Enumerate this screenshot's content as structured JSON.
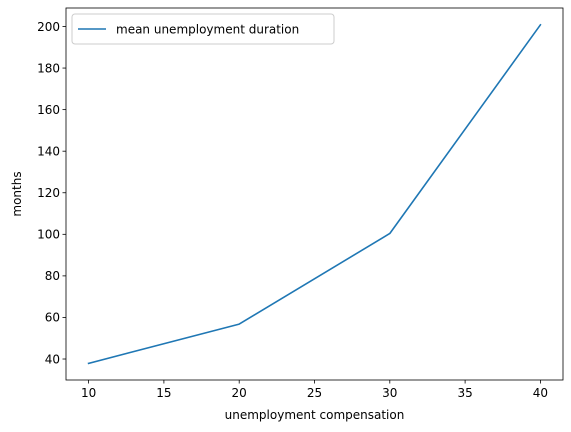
{
  "chart_data": {
    "type": "line",
    "title": "",
    "xlabel": "unemployment compensation",
    "ylabel": "months",
    "xlim": [
      8.5,
      41.5
    ],
    "ylim": [
      29.9,
      208.9
    ],
    "xticks": [
      10,
      15,
      20,
      25,
      30,
      35,
      40
    ],
    "yticks": [
      40,
      60,
      80,
      100,
      120,
      140,
      160,
      180,
      200
    ],
    "grid": false,
    "legend_position": "upper-left",
    "series": [
      {
        "name": "mean unemployment duration",
        "color": "#1f77b4",
        "x": [
          10,
          20,
          30,
          40
        ],
        "y": [
          37.9,
          56.8,
          100.4,
          200.8
        ]
      }
    ]
  }
}
